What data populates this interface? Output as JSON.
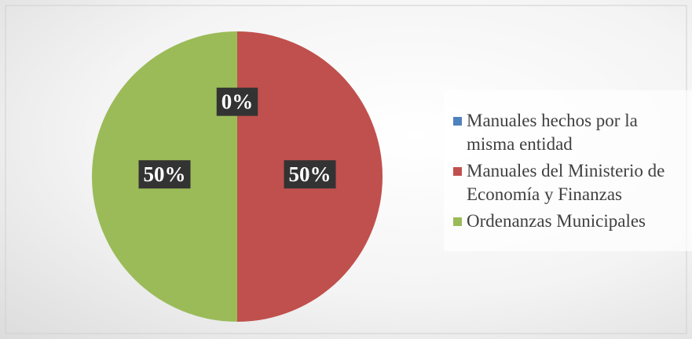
{
  "chart_data": {
    "type": "pie",
    "categories": [
      "Manuales hechos por la misma entidad",
      "Manuales del Ministerio de Economía y Finanzas",
      "Ordenanzas Municipales"
    ],
    "values": [
      0,
      50,
      50
    ],
    "value_labels": [
      "0%",
      "50%",
      "50%"
    ],
    "colors": [
      "#4f81bd",
      "#c0504d",
      "#9bbb59"
    ],
    "legend": "right"
  }
}
